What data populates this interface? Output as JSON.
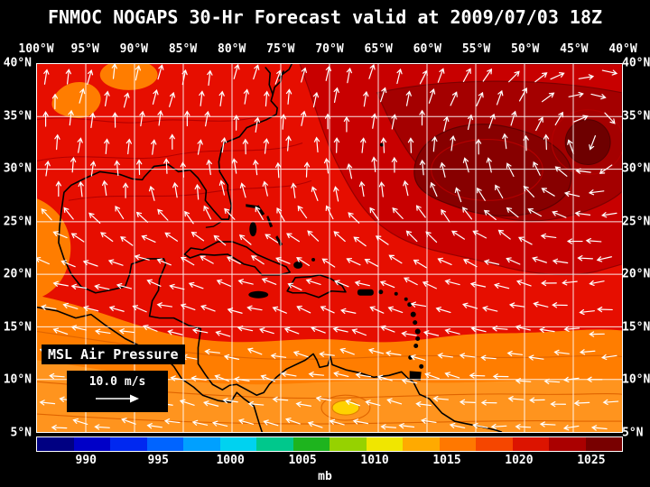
{
  "title": "FNMOC NOGAPS 30-Hr Forecast valid at 2009/07/03 18Z",
  "map": {
    "lon_labels": [
      "100°W",
      "95°W",
      "90°W",
      "85°W",
      "80°W",
      "75°W",
      "70°W",
      "65°W",
      "60°W",
      "55°W",
      "50°W",
      "45°W",
      "40°W"
    ],
    "lat_labels": [
      "40°N",
      "35°N",
      "30°N",
      "25°N",
      "20°N",
      "15°N",
      "10°N",
      "5°N"
    ],
    "overlay_label": "MSL Air Pressure",
    "wind_scale_label": "10.0 m/s"
  },
  "colorbar": {
    "unit": "mb",
    "tick_labels": [
      "990",
      "995",
      "1000",
      "1005",
      "1010",
      "1015",
      "1020",
      "1025"
    ],
    "segment_colors": [
      "#000082",
      "#0000c8",
      "#0028f0",
      "#0064ff",
      "#00a0ff",
      "#00d2f0",
      "#00c88c",
      "#1eb41e",
      "#96d200",
      "#f0e600",
      "#ffaa00",
      "#ff7800",
      "#f54600",
      "#dc1400",
      "#aa0000",
      "#780000"
    ]
  },
  "colors": {
    "background": "#000000",
    "text": "#ffffff",
    "grid": "#ffffff",
    "wind_arrows": "#ffffff",
    "coastline": "#000000",
    "zone_base": "#e60e00",
    "zone_orange": "#ff7d00",
    "zone_orange_light": "#ff941e",
    "zone_dark1": "#c80000",
    "zone_dark2": "#a40000",
    "zone_dark3": "#870000",
    "zone_swirl": "#6e0000",
    "low_spot": "#ffd200"
  }
}
